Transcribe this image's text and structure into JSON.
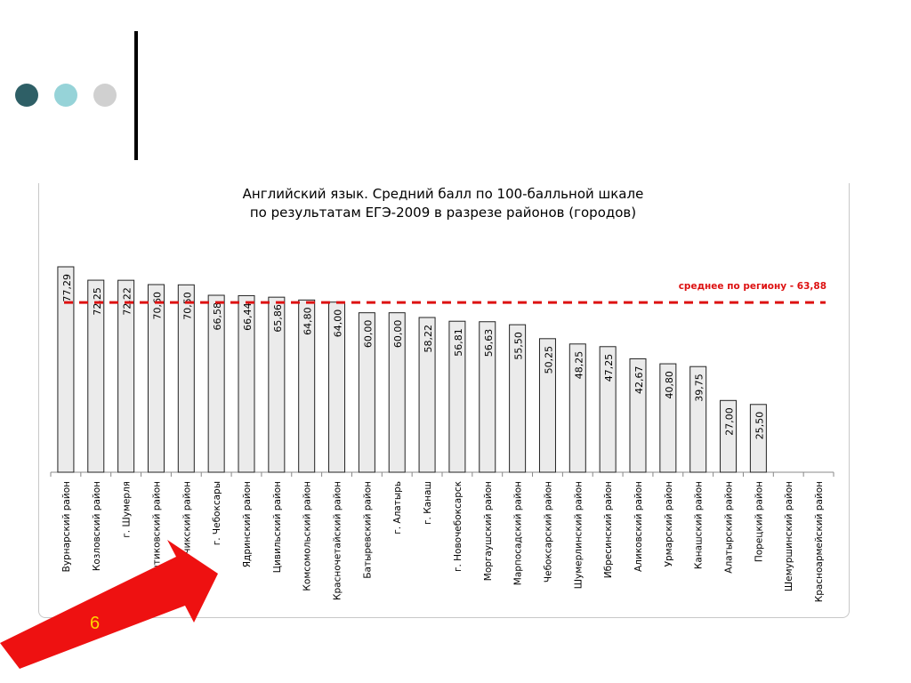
{
  "slide": {
    "number": "6",
    "colors": {
      "dot1": "#2e5f66",
      "dot2": "#96d3d8",
      "dot3": "#d0d0d0",
      "arrow": "#ee1111"
    }
  },
  "chart_data": {
    "type": "bar",
    "title_line1": "Английский язык. Средний балл по 100-балльной шкале",
    "title_line2": "по результатам ЕГЭ-2009 в разрезе районов (городов)",
    "categories": [
      "Вурнарский район",
      "Козловский район",
      "г. Шумерля",
      "Янтиковский район",
      "Яльчикский район",
      "г. Чебоксары",
      "Ядринский район",
      "Цивильский район",
      "Комсомольский район",
      "Красночетайский район",
      "Батыревский район",
      "г. Алатырь",
      "г. Канаш",
      "г. Новочебоксарск",
      "Моргаушский район",
      "Марпосадский район",
      "Чебоксарский район",
      "Шумерлинский район",
      "Ибресинский район",
      "Аликовский район",
      "Урмарский район",
      "Канашский район",
      "Алатырский район",
      "Порецкий район",
      "Шемуршинский район",
      "Красноармейский район"
    ],
    "values": [
      77.29,
      72.25,
      72.22,
      70.6,
      70.5,
      66.58,
      66.44,
      65.86,
      64.8,
      64.0,
      60.0,
      60.0,
      58.22,
      56.81,
      56.63,
      55.5,
      50.25,
      48.25,
      47.25,
      42.67,
      40.8,
      39.75,
      27.0,
      25.5,
      null,
      null
    ],
    "value_labels": [
      "77,29",
      "72,25",
      "72,22",
      "70,60",
      "70,50",
      "66,58",
      "66,44",
      "65,86",
      "64,80",
      "64,00",
      "60,00",
      "60,00",
      "58,22",
      "56,81",
      "56,63",
      "55,50",
      "50,25",
      "48,25",
      "47,25",
      "42,67",
      "40,80",
      "39,75",
      "27,00",
      "25,50",
      "",
      ""
    ],
    "average": {
      "value": 63.88,
      "label": "среднее по региону - 63,88",
      "color": "#dd1111"
    },
    "ylim": [
      0,
      100
    ],
    "bar_color": "#ebebeb"
  }
}
